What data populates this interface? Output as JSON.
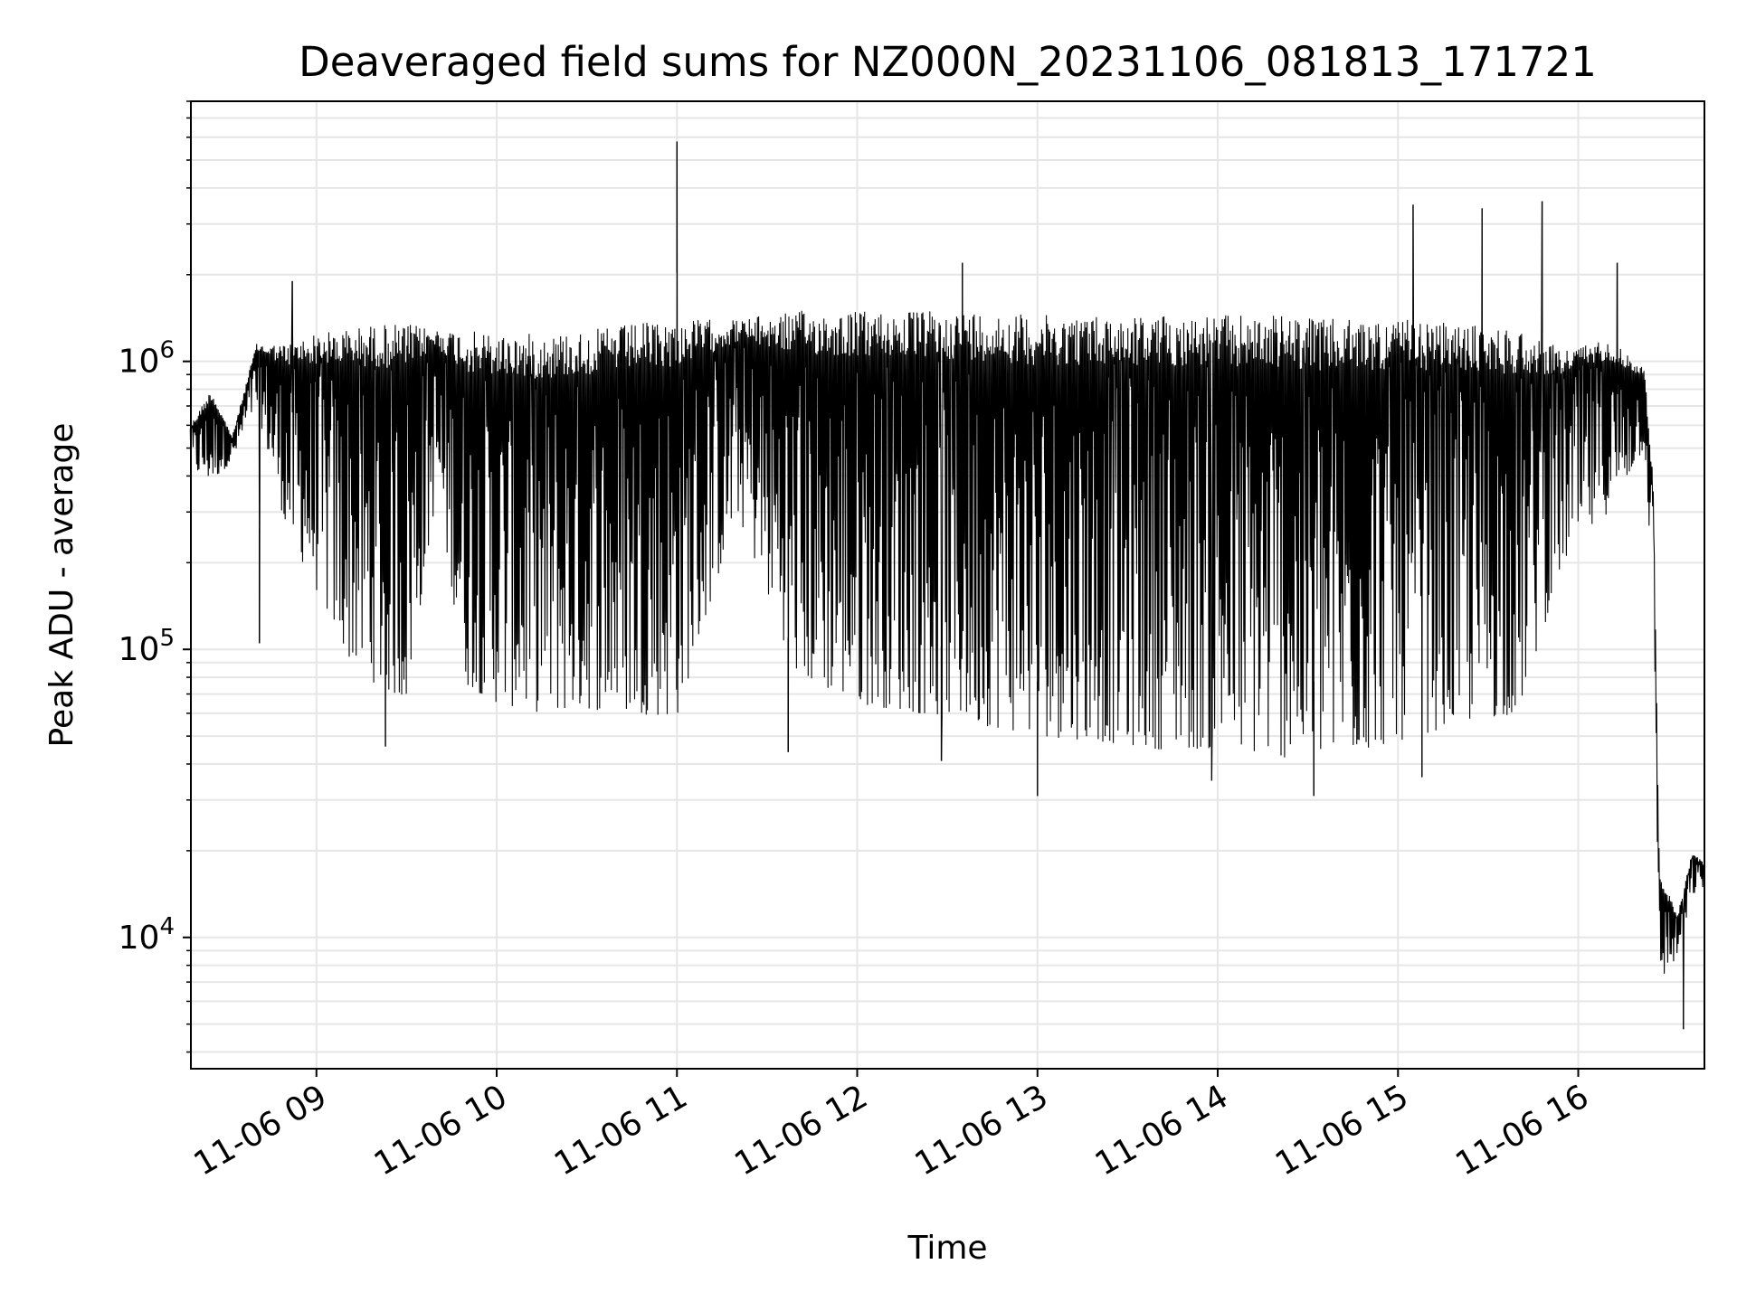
{
  "chart_data": {
    "type": "line",
    "title": "Deaveraged field sums for NZ000N_20231106_081813_171721",
    "xlabel": "Time",
    "ylabel": "Peak ADU - average",
    "x_scale": "time",
    "y_scale": "log",
    "xlim": [
      "2023-11-06 08:18:13",
      "2023-11-06 16:42:00"
    ],
    "ylim": [
      3500,
      8000000
    ],
    "x_ticks": [
      {
        "value": "2023-11-06 09:00",
        "label": "11-06 09"
      },
      {
        "value": "2023-11-06 10:00",
        "label": "11-06 10"
      },
      {
        "value": "2023-11-06 11:00",
        "label": "11-06 11"
      },
      {
        "value": "2023-11-06 12:00",
        "label": "11-06 12"
      },
      {
        "value": "2023-11-06 13:00",
        "label": "11-06 13"
      },
      {
        "value": "2023-11-06 14:00",
        "label": "11-06 14"
      },
      {
        "value": "2023-11-06 15:00",
        "label": "11-06 15"
      },
      {
        "value": "2023-11-06 16:00",
        "label": "11-06 16"
      }
    ],
    "y_ticks": [
      {
        "value": 10000,
        "base": "10",
        "exp": "4"
      },
      {
        "value": 100000,
        "base": "10",
        "exp": "5"
      },
      {
        "value": 1000000,
        "base": "10",
        "exp": "6"
      }
    ],
    "grid": true,
    "grid_color": "#e6e6e6",
    "line_color": "#000000",
    "series": [
      {
        "envelope": [
          {
            "x": "2023-11-06 08:18",
            "upper": 600000,
            "lower": 420000
          },
          {
            "x": "2023-11-06 08:25",
            "upper": 800000,
            "lower": 380000
          },
          {
            "x": "2023-11-06 08:32",
            "upper": 550000,
            "lower": 450000
          },
          {
            "x": "2023-11-06 08:40",
            "upper": 1150000,
            "lower": 700000
          },
          {
            "x": "2023-11-06 08:50",
            "upper": 1150000,
            "lower": 260000
          },
          {
            "x": "2023-11-06 09:00",
            "upper": 1250000,
            "lower": 160000
          },
          {
            "x": "2023-11-06 09:10",
            "upper": 1300000,
            "lower": 95000
          },
          {
            "x": "2023-11-06 09:20",
            "upper": 1350000,
            "lower": 75000
          },
          {
            "x": "2023-11-06 09:30",
            "upper": 1350000,
            "lower": 65000
          },
          {
            "x": "2023-11-06 09:40",
            "upper": 1300000,
            "lower": 350000
          },
          {
            "x": "2023-11-06 09:50",
            "upper": 1280000,
            "lower": 75000
          },
          {
            "x": "2023-11-06 10:00",
            "upper": 1250000,
            "lower": 65000
          },
          {
            "x": "2023-11-06 10:15",
            "upper": 1250000,
            "lower": 60000
          },
          {
            "x": "2023-11-06 10:30",
            "upper": 1280000,
            "lower": 62000
          },
          {
            "x": "2023-11-06 10:45",
            "upper": 1350000,
            "lower": 60000
          },
          {
            "x": "2023-11-06 11:00",
            "upper": 1400000,
            "lower": 58000
          },
          {
            "x": "2023-11-06 11:20",
            "upper": 1400000,
            "lower": 300000
          },
          {
            "x": "2023-11-06 11:40",
            "upper": 1500000,
            "lower": 80000
          },
          {
            "x": "2023-11-06 12:00",
            "upper": 1500000,
            "lower": 65000
          },
          {
            "x": "2023-11-06 12:20",
            "upper": 1500000,
            "lower": 60000
          },
          {
            "x": "2023-11-06 12:40",
            "upper": 1500000,
            "lower": 55000
          },
          {
            "x": "2023-11-06 13:00",
            "upper": 1450000,
            "lower": 50000
          },
          {
            "x": "2023-11-06 13:20",
            "upper": 1450000,
            "lower": 48000
          },
          {
            "x": "2023-11-06 13:40",
            "upper": 1450000,
            "lower": 45000
          },
          {
            "x": "2023-11-06 14:00",
            "upper": 1450000,
            "lower": 45000
          },
          {
            "x": "2023-11-06 14:20",
            "upper": 1450000,
            "lower": 42000
          },
          {
            "x": "2023-11-06 14:40",
            "upper": 1400000,
            "lower": 42000
          },
          {
            "x": "2023-11-06 15:00",
            "upper": 1400000,
            "lower": 48000
          },
          {
            "x": "2023-11-06 15:20",
            "upper": 1350000,
            "lower": 55000
          },
          {
            "x": "2023-11-06 15:40",
            "upper": 1300000,
            "lower": 60000
          },
          {
            "x": "2023-11-06 15:55",
            "upper": 1100000,
            "lower": 200000
          },
          {
            "x": "2023-11-06 16:10",
            "upper": 1200000,
            "lower": 300000
          },
          {
            "x": "2023-11-06 16:22",
            "upper": 950000,
            "lower": 500000
          },
          {
            "x": "2023-11-06 16:25",
            "upper": 380000,
            "lower": 150000
          },
          {
            "x": "2023-11-06 16:27",
            "upper": 17000,
            "lower": 7000
          },
          {
            "x": "2023-11-06 16:33",
            "upper": 12000,
            "lower": 8500
          },
          {
            "x": "2023-11-06 16:38",
            "upper": 20000,
            "lower": 14000
          },
          {
            "x": "2023-11-06 16:42",
            "upper": 18000,
            "lower": 15000
          }
        ],
        "spikes": [
          {
            "x": "2023-11-06 08:52",
            "value": 1900000
          },
          {
            "x": "2023-11-06 11:00",
            "value": 5800000
          },
          {
            "x": "2023-11-06 12:35",
            "value": 2200000
          },
          {
            "x": "2023-11-06 15:05",
            "value": 3500000
          },
          {
            "x": "2023-11-06 15:28",
            "value": 3400000
          },
          {
            "x": "2023-11-06 15:48",
            "value": 3600000
          },
          {
            "x": "2023-11-06 16:13",
            "value": 2200000
          }
        ],
        "dips": [
          {
            "x": "2023-11-06 08:41",
            "value": 105000
          },
          {
            "x": "2023-11-06 09:23",
            "value": 46000
          },
          {
            "x": "2023-11-06 11:37",
            "value": 44000
          },
          {
            "x": "2023-11-06 12:28",
            "value": 41000
          },
          {
            "x": "2023-11-06 13:00",
            "value": 31000
          },
          {
            "x": "2023-11-06 13:58",
            "value": 35000
          },
          {
            "x": "2023-11-06 14:32",
            "value": 31000
          },
          {
            "x": "2023-11-06 15:08",
            "value": 36000
          },
          {
            "x": "2023-11-06 16:35",
            "value": 4800
          }
        ]
      }
    ]
  }
}
